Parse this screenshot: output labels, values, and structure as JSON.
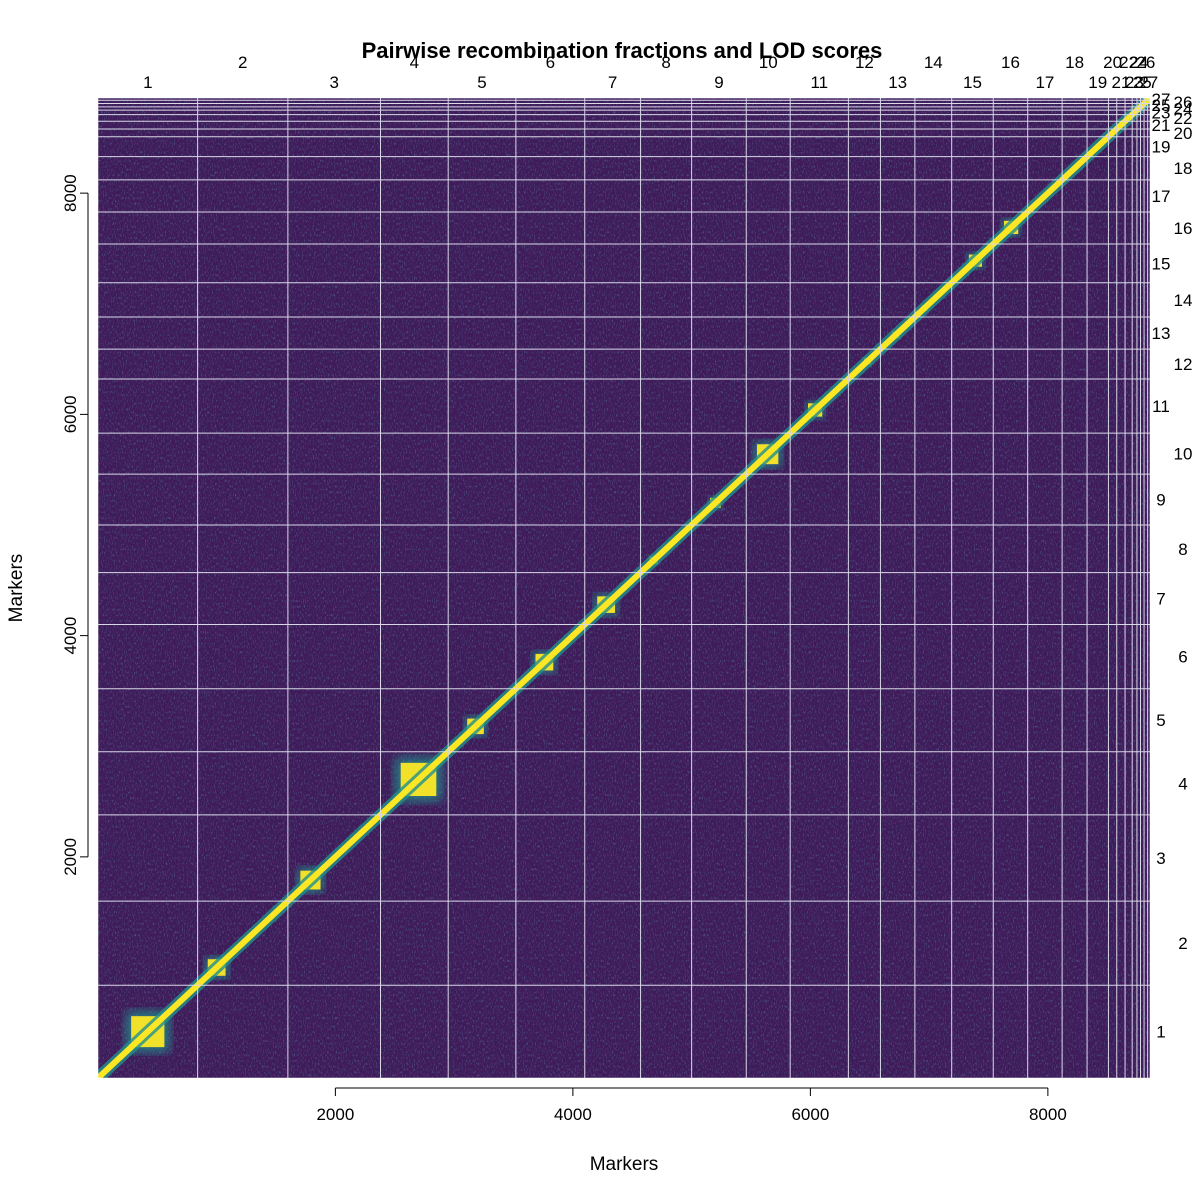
{
  "chart_data": {
    "type": "heatmap",
    "title": "Pairwise recombination fractions and LOD scores",
    "xlabel": "Markers",
    "ylabel": "Markers",
    "n_markers": 8860,
    "xlim": [
      1,
      8860
    ],
    "ylim": [
      1,
      8860
    ],
    "x_ticks": [
      2000,
      4000,
      6000,
      8000
    ],
    "y_ticks": [
      2000,
      4000,
      6000,
      8000
    ],
    "linkage_groups": [
      {
        "name": "1",
        "start": 1,
        "end": 840
      },
      {
        "name": "2",
        "start": 840,
        "end": 1600
      },
      {
        "name": "3",
        "start": 1600,
        "end": 2380
      },
      {
        "name": "4",
        "start": 2380,
        "end": 2950
      },
      {
        "name": "5",
        "start": 2950,
        "end": 3520
      },
      {
        "name": "6",
        "start": 3520,
        "end": 4100
      },
      {
        "name": "7",
        "start": 4100,
        "end": 4570
      },
      {
        "name": "8",
        "start": 4570,
        "end": 5000
      },
      {
        "name": "9",
        "start": 5000,
        "end": 5460
      },
      {
        "name": "10",
        "start": 5460,
        "end": 5830
      },
      {
        "name": "11",
        "start": 5830,
        "end": 6320
      },
      {
        "name": "12",
        "start": 6320,
        "end": 6590
      },
      {
        "name": "13",
        "start": 6590,
        "end": 6880
      },
      {
        "name": "14",
        "start": 6880,
        "end": 7190
      },
      {
        "name": "15",
        "start": 7190,
        "end": 7540
      },
      {
        "name": "16",
        "start": 7540,
        "end": 7830
      },
      {
        "name": "17",
        "start": 7830,
        "end": 8120
      },
      {
        "name": "18",
        "start": 8120,
        "end": 8330
      },
      {
        "name": "19",
        "start": 8330,
        "end": 8510
      },
      {
        "name": "20",
        "start": 8510,
        "end": 8580
      },
      {
        "name": "21",
        "start": 8580,
        "end": 8650
      },
      {
        "name": "22",
        "start": 8650,
        "end": 8710
      },
      {
        "name": "23",
        "start": 8710,
        "end": 8750
      },
      {
        "name": "24",
        "start": 8750,
        "end": 8780
      },
      {
        "name": "25",
        "start": 8780,
        "end": 8810
      },
      {
        "name": "26",
        "start": 8810,
        "end": 8840
      },
      {
        "name": "27",
        "start": 8840,
        "end": 8860
      }
    ],
    "high_linkage_blocks": [
      {
        "center": 420,
        "size": 280
      },
      {
        "center": 1000,
        "size": 150
      },
      {
        "center": 1790,
        "size": 170
      },
      {
        "center": 2700,
        "size": 300
      },
      {
        "center": 3180,
        "size": 140
      },
      {
        "center": 3760,
        "size": 150
      },
      {
        "center": 4280,
        "size": 150
      },
      {
        "center": 4680,
        "size": 70
      },
      {
        "center": 5200,
        "size": 90
      },
      {
        "center": 5640,
        "size": 180
      },
      {
        "center": 6040,
        "size": 120
      },
      {
        "center": 6480,
        "size": 60
      },
      {
        "center": 6720,
        "size": 60
      },
      {
        "center": 6960,
        "size": 50
      },
      {
        "center": 7390,
        "size": 110
      },
      {
        "center": 7690,
        "size": 120
      },
      {
        "center": 8010,
        "size": 40
      },
      {
        "center": 8420,
        "size": 40
      }
    ],
    "colors": {
      "background": "#3f1b5a",
      "low": "#440154",
      "mid": "#21918c",
      "high": "#fde725",
      "grid": "#d8d8e8"
    }
  }
}
